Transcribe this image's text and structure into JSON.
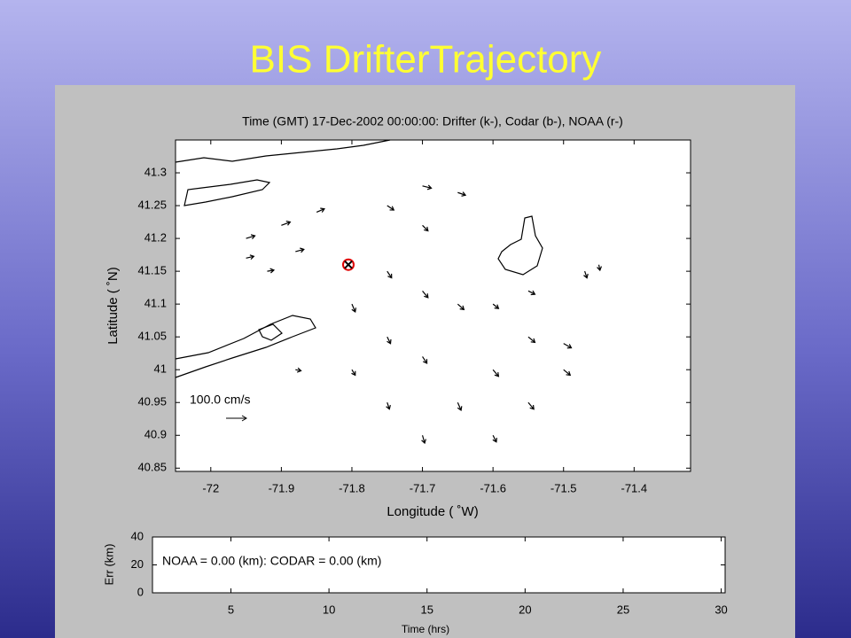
{
  "slide_title": "BIS DrifterTrajectory",
  "chart_data": [
    {
      "type": "quiver",
      "title": "Time (GMT) 17-Dec-2002 00:00:00: Drifter (k-), Codar (b-), NOAA (r-)",
      "xlabel": "Longitude ( ˚W)",
      "ylabel": "Latitude ( ˚N)",
      "scale_label": "100.0 cm/s",
      "xlim": [
        -72.05,
        -71.32
      ],
      "ylim": [
        40.845,
        41.35
      ],
      "xticks": [
        -72,
        -71.9,
        -71.8,
        -71.7,
        -71.6,
        -71.5,
        -71.4
      ],
      "yticks": [
        40.85,
        40.9,
        40.95,
        41,
        41.05,
        41.1,
        41.15,
        41.2,
        41.25,
        41.3
      ],
      "color": "#000000",
      "vectors": {
        "x": [
          -71.95,
          -71.9,
          -71.85,
          -71.95,
          -71.88,
          -71.92,
          -71.7,
          -71.65,
          -71.75,
          -71.7,
          -71.75,
          -71.7,
          -71.65,
          -71.8,
          -71.75,
          -71.7,
          -71.6,
          -71.55,
          -71.55,
          -71.5,
          -71.6,
          -71.65,
          -71.75,
          -71.8,
          -71.7,
          -71.6,
          -71.55,
          -71.5,
          -71.47,
          -71.45,
          -71.88
        ],
        "y": [
          41.2,
          41.22,
          41.24,
          41.17,
          41.18,
          41.15,
          41.28,
          41.27,
          41.25,
          41.22,
          41.15,
          41.12,
          41.1,
          41.1,
          41.05,
          41.02,
          41.1,
          41.12,
          41.05,
          41.04,
          41.0,
          40.95,
          40.95,
          41.0,
          40.9,
          40.9,
          40.95,
          41.0,
          41.15,
          41.16,
          41.0
        ],
        "u": [
          40,
          40,
          35,
          35,
          38,
          30,
          40,
          35,
          30,
          25,
          20,
          25,
          28,
          15,
          15,
          20,
          25,
          30,
          30,
          35,
          25,
          15,
          10,
          15,
          10,
          15,
          25,
          30,
          10,
          5,
          25
        ],
        "v": [
          12,
          15,
          15,
          8,
          10,
          5,
          -10,
          -12,
          -20,
          -25,
          -30,
          -30,
          -25,
          -35,
          -30,
          -30,
          -20,
          -15,
          -25,
          -20,
          -30,
          -35,
          -30,
          -25,
          -35,
          -30,
          -30,
          -25,
          -30,
          -25,
          -5
        ]
      },
      "drifter_position": {
        "x": -71.805,
        "y": 41.16,
        "color": "#e00000"
      }
    },
    {
      "type": "line",
      "xlabel": "Time (hrs)",
      "ylabel": "Err (km)",
      "annotation": "NOAA = 0.00 (km): CODAR = 0.00 (km)",
      "xlim": [
        1,
        30.2
      ],
      "ylim": [
        0,
        40
      ],
      "xticks": [
        5,
        10,
        15,
        20,
        25,
        30
      ],
      "yticks": [
        0,
        20,
        40
      ]
    }
  ]
}
